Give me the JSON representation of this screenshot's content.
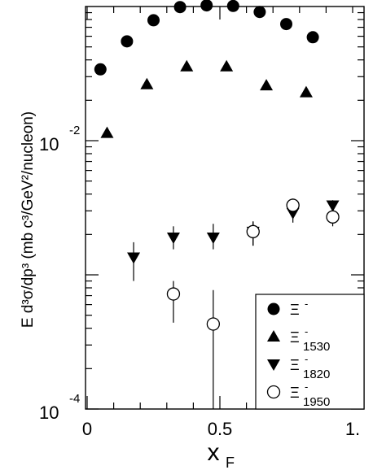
{
  "chart_data": {
    "type": "scatter",
    "title": "",
    "xlabel": {
      "main": "x",
      "sub": "F"
    },
    "ylabel": "E d³σ/dp³ (mb c³/GeV²/nucleon)",
    "x_scale": "linear",
    "y_scale": "log",
    "xlim": [
      0,
      1.0
    ],
    "ylim": [
      0.0001,
      0.1
    ],
    "x_ticks": [
      {
        "value": 0,
        "label": "0"
      },
      {
        "value": 0.5,
        "label": "0.5"
      },
      {
        "value": 1.0,
        "label": "1."
      }
    ],
    "y_major_ticks": [
      {
        "value": 0.0001,
        "base": "10",
        "exp": "-4"
      },
      {
        "value": 0.01,
        "base": "10",
        "exp": "-2"
      }
    ],
    "grid": false,
    "legend_position": "bottom-right",
    "series": [
      {
        "name": "Ξ⁻",
        "legend": {
          "main": "Ξ",
          "sup": "-",
          "sub": ""
        },
        "marker": "filled-circle",
        "points": [
          {
            "x": 0.05,
            "y": 0.034
          },
          {
            "x": 0.15,
            "y": 0.055
          },
          {
            "x": 0.25,
            "y": 0.079
          },
          {
            "x": 0.35,
            "y": 0.099
          },
          {
            "x": 0.45,
            "y": 0.102
          },
          {
            "x": 0.55,
            "y": 0.101
          },
          {
            "x": 0.65,
            "y": 0.091
          },
          {
            "x": 0.75,
            "y": 0.074
          },
          {
            "x": 0.85,
            "y": 0.059
          }
        ]
      },
      {
        "name": "Ξ⁻₁₅₃₀",
        "legend": {
          "main": "Ξ",
          "sup": "-",
          "sub": "1530"
        },
        "marker": "filled-triangle-up",
        "points": [
          {
            "x": 0.075,
            "y": 0.0114
          },
          {
            "x": 0.225,
            "y": 0.0263
          },
          {
            "x": 0.375,
            "y": 0.0357
          },
          {
            "x": 0.525,
            "y": 0.0357
          },
          {
            "x": 0.675,
            "y": 0.0258
          },
          {
            "x": 0.825,
            "y": 0.0229
          }
        ]
      },
      {
        "name": "Ξ⁻₁₈₂₀",
        "legend": {
          "main": "Ξ",
          "sup": "-",
          "sub": "1820"
        },
        "marker": "filled-triangle-down",
        "points": [
          {
            "x": 0.175,
            "y": 0.00135,
            "err_low": 0.0009,
            "err_high": 0.00175
          },
          {
            "x": 0.325,
            "y": 0.0019,
            "err_low": 0.00155,
            "err_high": 0.0023
          },
          {
            "x": 0.475,
            "y": 0.0019,
            "err_low": 0.00155,
            "err_high": 0.0024
          },
          {
            "x": 0.625,
            "y": 0.0021,
            "err_low": 0.00165,
            "err_high": 0.0025
          },
          {
            "x": 0.775,
            "y": 0.0029,
            "err_low": 0.00245,
            "err_high": 0.0033
          },
          {
            "x": 0.925,
            "y": 0.0033,
            "err_low": 0.0029,
            "err_high": 0.0036
          }
        ]
      },
      {
        "name": "Ξ⁻₁₉₅₀",
        "legend": {
          "main": "Ξ",
          "sup": "-",
          "sub": "1950"
        },
        "marker": "open-circle",
        "points": [
          {
            "x": 0.325,
            "y": 0.00072,
            "err_low": 0.00044,
            "err_high": 0.0009
          },
          {
            "x": 0.475,
            "y": 0.00043,
            "err_low": 0.0001,
            "err_high": 0.00077
          },
          {
            "x": 0.625,
            "y": 0.0021,
            "err_low": 0.00165,
            "err_high": 0.0025
          },
          {
            "x": 0.775,
            "y": 0.0033,
            "err_low": 0.00285,
            "err_high": 0.0037
          },
          {
            "x": 0.925,
            "y": 0.0027,
            "err_low": 0.0023,
            "err_high": 0.0031
          }
        ]
      }
    ]
  }
}
